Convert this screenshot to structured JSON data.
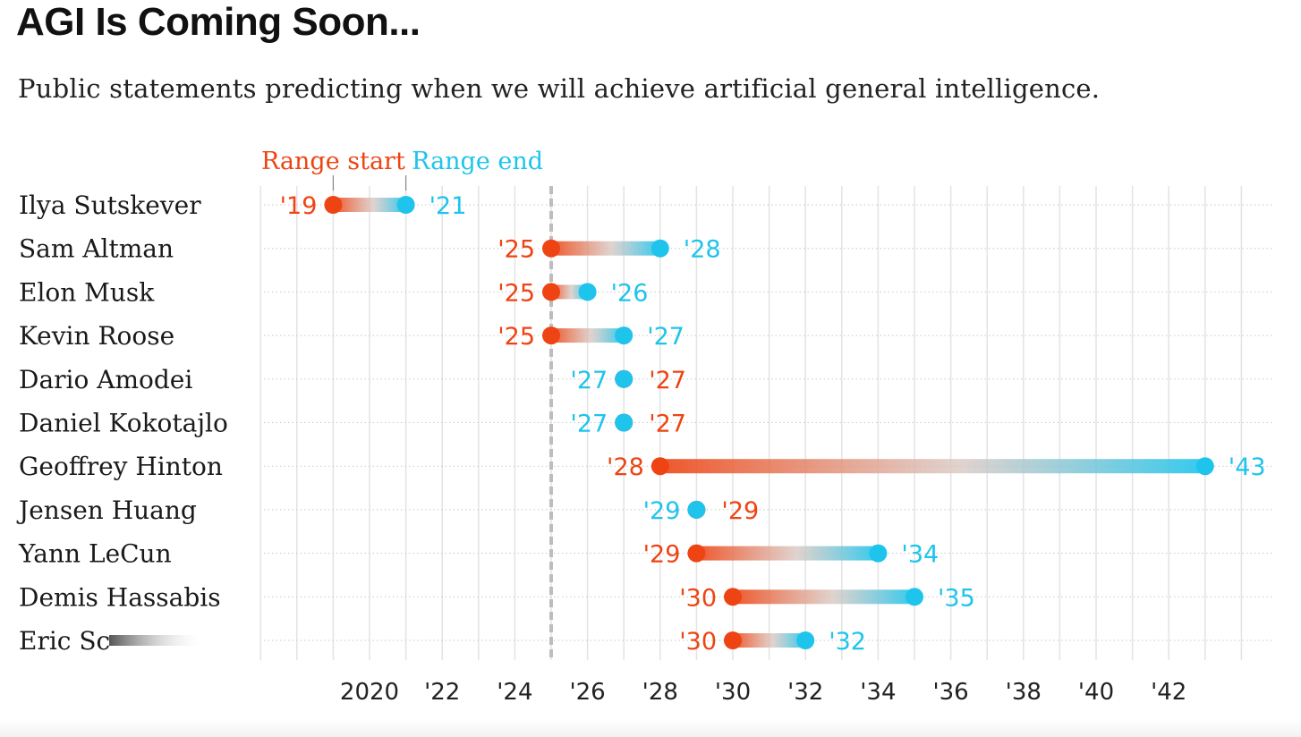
{
  "chart_data": {
    "type": "range-dot",
    "title": "AGI Is Coming Soon...",
    "subtitle": "Public statements predicting when we will achieve artificial general intelligence.",
    "legend": {
      "start_label": "Range start",
      "end_label": "Range end",
      "placement": "top-left"
    },
    "xlim": [
      2016.5,
      2044
    ],
    "reference_line": 2025,
    "x_ticks": [
      {
        "value": 2020,
        "label": "2020"
      },
      {
        "value": 2022,
        "label": "'22"
      },
      {
        "value": 2024,
        "label": "'24"
      },
      {
        "value": 2026,
        "label": "'26"
      },
      {
        "value": 2028,
        "label": "'28"
      },
      {
        "value": 2030,
        "label": "'30"
      },
      {
        "value": 2032,
        "label": "'32"
      },
      {
        "value": 2034,
        "label": "'34"
      },
      {
        "value": 2036,
        "label": "'36"
      },
      {
        "value": 2038,
        "label": "'38"
      },
      {
        "value": 2040,
        "label": "'40"
      },
      {
        "value": 2042,
        "label": "'42"
      }
    ],
    "rows": [
      {
        "name": "Ilya Sutskever",
        "start": 2019,
        "end": 2021,
        "start_label": "'19",
        "end_label": "'21"
      },
      {
        "name": "Sam Altman",
        "start": 2025,
        "end": 2028,
        "start_label": "'25",
        "end_label": "'28"
      },
      {
        "name": "Elon Musk",
        "start": 2025,
        "end": 2026,
        "start_label": "'25",
        "end_label": "'26"
      },
      {
        "name": "Kevin Roose",
        "start": 2025,
        "end": 2027,
        "start_label": "'25",
        "end_label": "'27"
      },
      {
        "name": "Dario Amodei",
        "start": 2027,
        "end": 2027,
        "start_label": "'27",
        "end_label": "'27"
      },
      {
        "name": "Daniel Kokotajlo",
        "start": 2027,
        "end": 2027,
        "start_label": "'27",
        "end_label": "'27"
      },
      {
        "name": "Geoffrey Hinton",
        "start": 2028,
        "end": 2043,
        "start_label": "'28",
        "end_label": "'43"
      },
      {
        "name": "Jensen Huang",
        "start": 2029,
        "end": 2029,
        "start_label": "'29",
        "end_label": "'29"
      },
      {
        "name": "Yann LeCun",
        "start": 2029,
        "end": 2034,
        "start_label": "'29",
        "end_label": "'34"
      },
      {
        "name": "Demis Hassabis",
        "start": 2030,
        "end": 2035,
        "start_label": "'30",
        "end_label": "'35"
      },
      {
        "name": "Eric Sc",
        "start": 2030,
        "end": 2032,
        "start_label": "'30",
        "end_label": "'32"
      }
    ],
    "colors": {
      "start": "#ee4413",
      "end": "#1ec4ec",
      "grid": "#e3e3e3",
      "reference": "#bdbdbd"
    }
  }
}
